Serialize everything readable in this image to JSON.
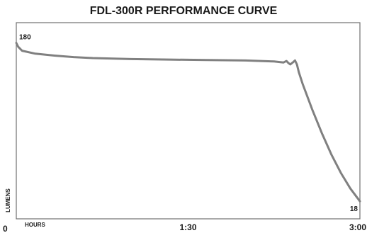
{
  "chart_data": {
    "type": "line",
    "title": "FDL-300R PERFORMANCE CURVE",
    "xlabel": "HOURS",
    "ylabel": "LUMENS",
    "x_unit": "minutes",
    "xlim": [
      0,
      180
    ],
    "ylim": [
      0,
      200
    ],
    "grid": false,
    "x_ticks": [
      {
        "value": 0,
        "label": "0"
      },
      {
        "value": 90,
        "label": "1:30"
      },
      {
        "value": 180,
        "label": "3:00"
      }
    ],
    "series": [
      {
        "color": "#808080",
        "points": [
          [
            0,
            180
          ],
          [
            1,
            176
          ],
          [
            3,
            172
          ],
          [
            10,
            169
          ],
          [
            20,
            167
          ],
          [
            30,
            165.5
          ],
          [
            40,
            164.5
          ],
          [
            60,
            163.5
          ],
          [
            80,
            163
          ],
          [
            100,
            162.5
          ],
          [
            120,
            162
          ],
          [
            135,
            161
          ],
          [
            140,
            160
          ],
          [
            141.5,
            161.5
          ],
          [
            142.5,
            159.5
          ],
          [
            143.5,
            158
          ],
          [
            144.8,
            160
          ],
          [
            146,
            162
          ],
          [
            147,
            158
          ],
          [
            148,
            150
          ],
          [
            150,
            138
          ],
          [
            155,
            112
          ],
          [
            160,
            88
          ],
          [
            165,
            66
          ],
          [
            170,
            47
          ],
          [
            175,
            31
          ],
          [
            180,
            18
          ]
        ]
      }
    ],
    "data_labels": [
      {
        "x": 0,
        "y": 180,
        "text": "180"
      },
      {
        "x": 180,
        "y": 18,
        "text": "18"
      }
    ],
    "colors": {
      "line": "#808080",
      "frame": "#707070",
      "text": "#1a1a1a",
      "background": "#ffffff"
    }
  }
}
